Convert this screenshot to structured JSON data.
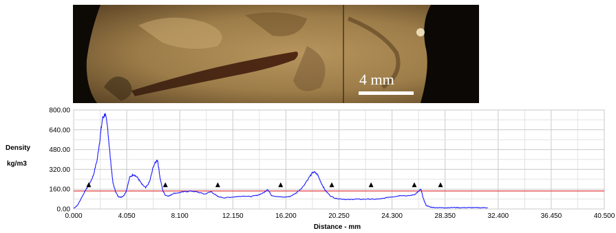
{
  "image": {
    "scale_label": "4 mm"
  },
  "chart_data": {
    "type": "line",
    "ylabel_line1": "Density",
    "ylabel_line2": "kg/m3",
    "xlabel": "Distance - mm",
    "xlim": [
      0,
      40.5
    ],
    "ylim": [
      0,
      800
    ],
    "x_ticks": [
      "0.000",
      "4.050",
      "8.100",
      "12.150",
      "16.200",
      "20.250",
      "24.300",
      "28.350",
      "32.400",
      "36.450",
      "40.500"
    ],
    "y_ticks": [
      "0.00",
      "160.00",
      "320.00",
      "480.00",
      "640.00",
      "800.00"
    ],
    "grid": true,
    "threshold_line": {
      "value": 145,
      "color": "#e03a3a"
    },
    "series": [
      {
        "color": "#1a1aff",
        "x": [
          0,
          0.3,
          0.6,
          0.9,
          1.2,
          1.5,
          1.8,
          2.0,
          2.2,
          2.4,
          2.6,
          2.8,
          3.0,
          3.2,
          3.4,
          3.6,
          3.8,
          4.0,
          4.3,
          4.6,
          4.9,
          5.2,
          5.5,
          5.8,
          6.1,
          6.4,
          6.6,
          6.8,
          7.0,
          7.3,
          7.6,
          8.0,
          8.5,
          9.0,
          9.5,
          10.0,
          10.5,
          11.0,
          11.5,
          12.0,
          12.5,
          13.0,
          13.5,
          14.0,
          14.5,
          14.8,
          15.1,
          15.5,
          16.0,
          16.5,
          17.0,
          17.5,
          18.0,
          18.3,
          18.6,
          18.9,
          19.2,
          19.6,
          20.0,
          20.5,
          21.0,
          21.5,
          22.0,
          22.5,
          23.0,
          23.5,
          24.0,
          24.5,
          25.0,
          25.5,
          26.0,
          26.3,
          26.5,
          26.7,
          26.9,
          27.2,
          27.5,
          28.0,
          28.5,
          29.0,
          29.5,
          30.0,
          30.5,
          31.0,
          31.6
        ],
        "y": [
          5,
          30,
          90,
          150,
          200,
          270,
          400,
          560,
          730,
          770,
          650,
          410,
          210,
          140,
          100,
          95,
          105,
          140,
          260,
          280,
          250,
          200,
          170,
          220,
          350,
          400,
          250,
          150,
          110,
          105,
          125,
          130,
          140,
          145,
          135,
          120,
          140,
          100,
          90,
          95,
          100,
          105,
          100,
          110,
          130,
          160,
          110,
          100,
          95,
          100,
          130,
          180,
          260,
          300,
          280,
          210,
          150,
          105,
          85,
          80,
          75,
          80,
          78,
          80,
          78,
          82,
          95,
          100,
          110,
          105,
          115,
          140,
          160,
          80,
          30,
          15,
          12,
          10,
          10,
          12,
          10,
          11,
          10,
          10,
          10
        ]
      }
    ],
    "markers": [
      {
        "x": 1.15,
        "y": 193
      },
      {
        "x": 7.0,
        "y": 193
      },
      {
        "x": 11.0,
        "y": 193
      },
      {
        "x": 15.8,
        "y": 193
      },
      {
        "x": 19.7,
        "y": 193
      },
      {
        "x": 22.7,
        "y": 193
      },
      {
        "x": 26.0,
        "y": 193
      },
      {
        "x": 28.0,
        "y": 193
      }
    ]
  }
}
